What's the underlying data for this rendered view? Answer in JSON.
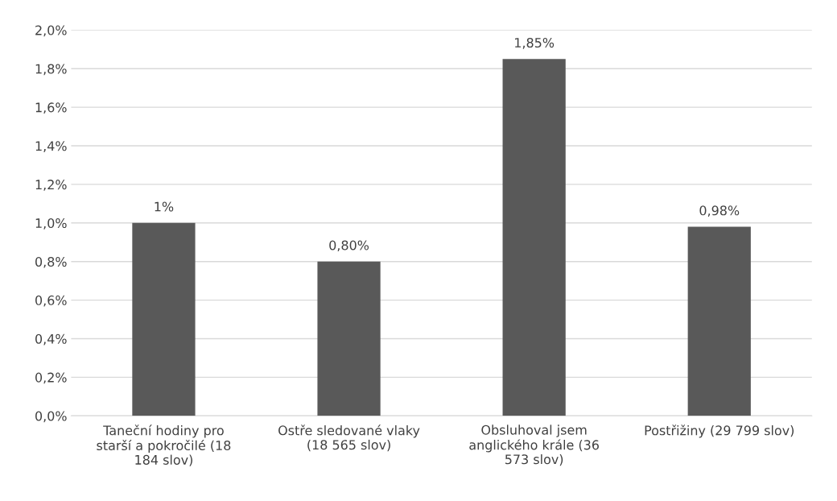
{
  "chart_data": {
    "type": "bar",
    "categories": [
      "Taneční hodiny pro\nstarší a pokročilé (18\n184 slov)",
      "Ostře sledované vlaky\n(18 565 slov)",
      "Obsluhoval jsem\nanglického krále (36\n573 slov)",
      "Postřižiny (29 799 slov)"
    ],
    "values": [
      1.0,
      0.8,
      1.85,
      0.98
    ],
    "value_labels": [
      "1%",
      "0,80%",
      "1,85%",
      "0,98%"
    ],
    "color": "#595959",
    "ylim": [
      0,
      2.0
    ],
    "yticks": [
      {
        "value": 0,
        "label": "0,0%"
      },
      {
        "value": 0.2,
        "label": "0,2%"
      },
      {
        "value": 0.4,
        "label": "0,4%"
      },
      {
        "value": 0.6,
        "label": "0,6%"
      },
      {
        "value": 0.8,
        "label": "0,8%"
      },
      {
        "value": 1.0,
        "label": "1,0%"
      },
      {
        "value": 1.2,
        "label": "1,2%"
      },
      {
        "value": 1.4,
        "label": "1,4%"
      },
      {
        "value": 1.6,
        "label": "1,6%"
      },
      {
        "value": 1.8,
        "label": "1,8%"
      },
      {
        "value": 2.0,
        "label": "2,0%"
      }
    ],
    "grid": "y"
  }
}
